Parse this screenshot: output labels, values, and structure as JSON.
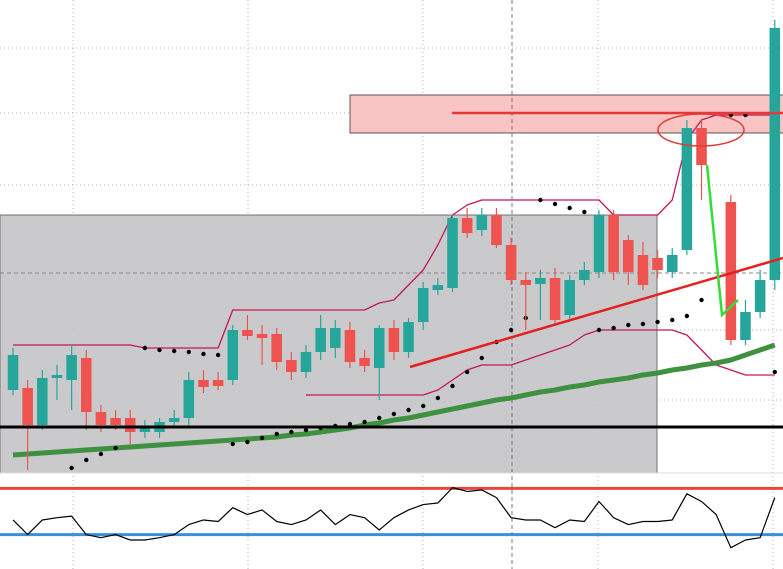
{
  "chart_data": [
    {
      "type": "candlestick",
      "categories": [
        null,
        null,
        null,
        null,
        null,
        null,
        null,
        null,
        null,
        null,
        null,
        null,
        null,
        null,
        null,
        null,
        null,
        null,
        null,
        null,
        null,
        null,
        null,
        null,
        null,
        null,
        null,
        null,
        null,
        null,
        null,
        null,
        null,
        null,
        null,
        null,
        null,
        null,
        null,
        null,
        null,
        null,
        null,
        null,
        null,
        null,
        null,
        null,
        null,
        null,
        null,
        null,
        null
      ],
      "open": [
        85,
        87,
        50,
        97,
        95,
        117,
        63,
        57,
        57,
        43,
        43,
        53,
        57,
        95,
        95,
        95,
        145,
        141,
        141,
        115,
        103,
        123,
        127,
        145,
        117,
        107,
        147,
        123,
        153,
        185,
        187,
        257,
        245,
        260,
        230,
        195,
        191,
        197,
        160,
        195,
        203,
        260,
        235,
        220,
        217,
        203,
        225,
        347,
        null,
        273,
        135,
        163,
        195
      ],
      "high": [
        127,
        95,
        105,
        110,
        130,
        125,
        70,
        65,
        65,
        55,
        57,
        65,
        103,
        105,
        103,
        150,
        160,
        150,
        147,
        123,
        130,
        160,
        155,
        153,
        125,
        150,
        155,
        157,
        193,
        197,
        260,
        267,
        267,
        267,
        237,
        203,
        205,
        207,
        200,
        213,
        265,
        265,
        240,
        233,
        225,
        227,
        355,
        355,
        null,
        280,
        175,
        205,
        455
      ],
      "low": [
        80,
        5,
        45,
        75,
        65,
        45,
        43,
        45,
        30,
        37,
        37,
        47,
        50,
        82,
        85,
        90,
        135,
        110,
        105,
        95,
        97,
        115,
        117,
        107,
        103,
        75,
        115,
        117,
        145,
        180,
        183,
        237,
        239,
        227,
        190,
        145,
        155,
        150,
        153,
        190,
        197,
        195,
        190,
        185,
        197,
        197,
        220,
        275,
        null,
        130,
        130,
        157,
        185
      ],
      "close": [
        120,
        50,
        97,
        100,
        120,
        63,
        50,
        50,
        43,
        47,
        53,
        57,
        95,
        88,
        89,
        145,
        139,
        137,
        113,
        103,
        123,
        147,
        147,
        113,
        109,
        147,
        123,
        153,
        187,
        190,
        257,
        242,
        260,
        230,
        195,
        190,
        197,
        155,
        195,
        205,
        260,
        203,
        203,
        190,
        205,
        220,
        347,
        310,
        null,
        135,
        163,
        195,
        447
      ],
      "up_color": "#26a69a",
      "down_color": "#ef5350",
      "ylim": [
        0,
        475
      ],
      "overlays": [
        {
          "type": "line",
          "color": "#c2185b",
          "width": 1.3,
          "values": [
            130,
            130,
            130,
            130,
            130,
            130,
            130,
            130,
            130,
            127,
            127,
            127,
            127,
            127,
            127,
            165,
            165,
            165,
            165,
            165,
            165,
            165,
            165,
            165,
            165,
            172,
            175,
            190,
            205,
            230,
            260,
            270,
            275,
            275,
            275,
            275,
            275,
            275,
            275,
            275,
            275,
            260,
            260,
            260,
            260,
            275,
            335,
            355,
            360,
            360,
            360,
            360,
            360
          ]
        },
        {
          "type": "line",
          "color": "#c2185b",
          "width": 1.3,
          "values": [
            null,
            null,
            null,
            null,
            null,
            null,
            null,
            null,
            null,
            null,
            null,
            null,
            null,
            null,
            null,
            null,
            null,
            null,
            null,
            null,
            80,
            80,
            80,
            80,
            80,
            80,
            80,
            80,
            80,
            85,
            95,
            105,
            110,
            110,
            110,
            115,
            120,
            125,
            130,
            140,
            145,
            145,
            145,
            145,
            145,
            145,
            140,
            125,
            110,
            105,
            100,
            100,
            100
          ]
        },
        {
          "type": "line",
          "color": "#3d9140",
          "width": 5,
          "values": [
            20,
            21,
            22,
            23,
            24,
            25,
            26,
            27,
            28,
            29,
            30,
            31,
            32,
            33,
            34,
            35,
            36,
            37,
            38,
            40,
            41,
            43,
            45,
            47,
            50,
            52,
            55,
            57,
            60,
            63,
            66,
            69,
            72,
            75,
            77,
            80,
            83,
            85,
            88,
            90,
            93,
            95,
            97,
            100,
            102,
            105,
            107,
            110,
            112,
            115,
            120,
            125,
            130
          ]
        },
        {
          "type": "dots",
          "color": "#000000",
          "values": [
            null,
            null,
            null,
            null,
            7,
            15,
            21,
            27,
            null,
            127,
            125,
            124,
            123,
            121,
            120,
            31,
            33,
            37,
            41,
            43,
            45,
            47,
            49,
            51,
            53,
            57,
            61,
            65,
            69,
            77,
            89,
            103,
            117,
            133,
            145,
            157,
            275,
            271,
            267,
            263,
            145,
            147,
            150,
            151,
            153,
            155,
            159,
            175,
            null,
            360,
            360,
            null,
            103
          ]
        }
      ]
    },
    {
      "type": "line",
      "color": "#000000",
      "values": [
        39,
        20,
        39,
        42,
        44,
        20,
        16,
        20,
        13,
        13,
        16,
        20,
        33,
        39,
        37,
        55,
        46,
        52,
        37,
        33,
        39,
        52,
        33,
        46,
        42,
        26,
        42,
        52,
        59,
        61,
        81,
        76,
        78,
        68,
        42,
        39,
        39,
        29,
        39,
        37,
        63,
        42,
        33,
        37,
        37,
        39,
        73,
        63,
        46,
        3,
        13,
        16,
        68
      ],
      "ylim": [
        0,
        100
      ],
      "levels": [
        {
          "value": 80,
          "color": "#e04b3f"
        },
        {
          "value": 20,
          "color": "#3a8fd9"
        }
      ]
    }
  ]
}
